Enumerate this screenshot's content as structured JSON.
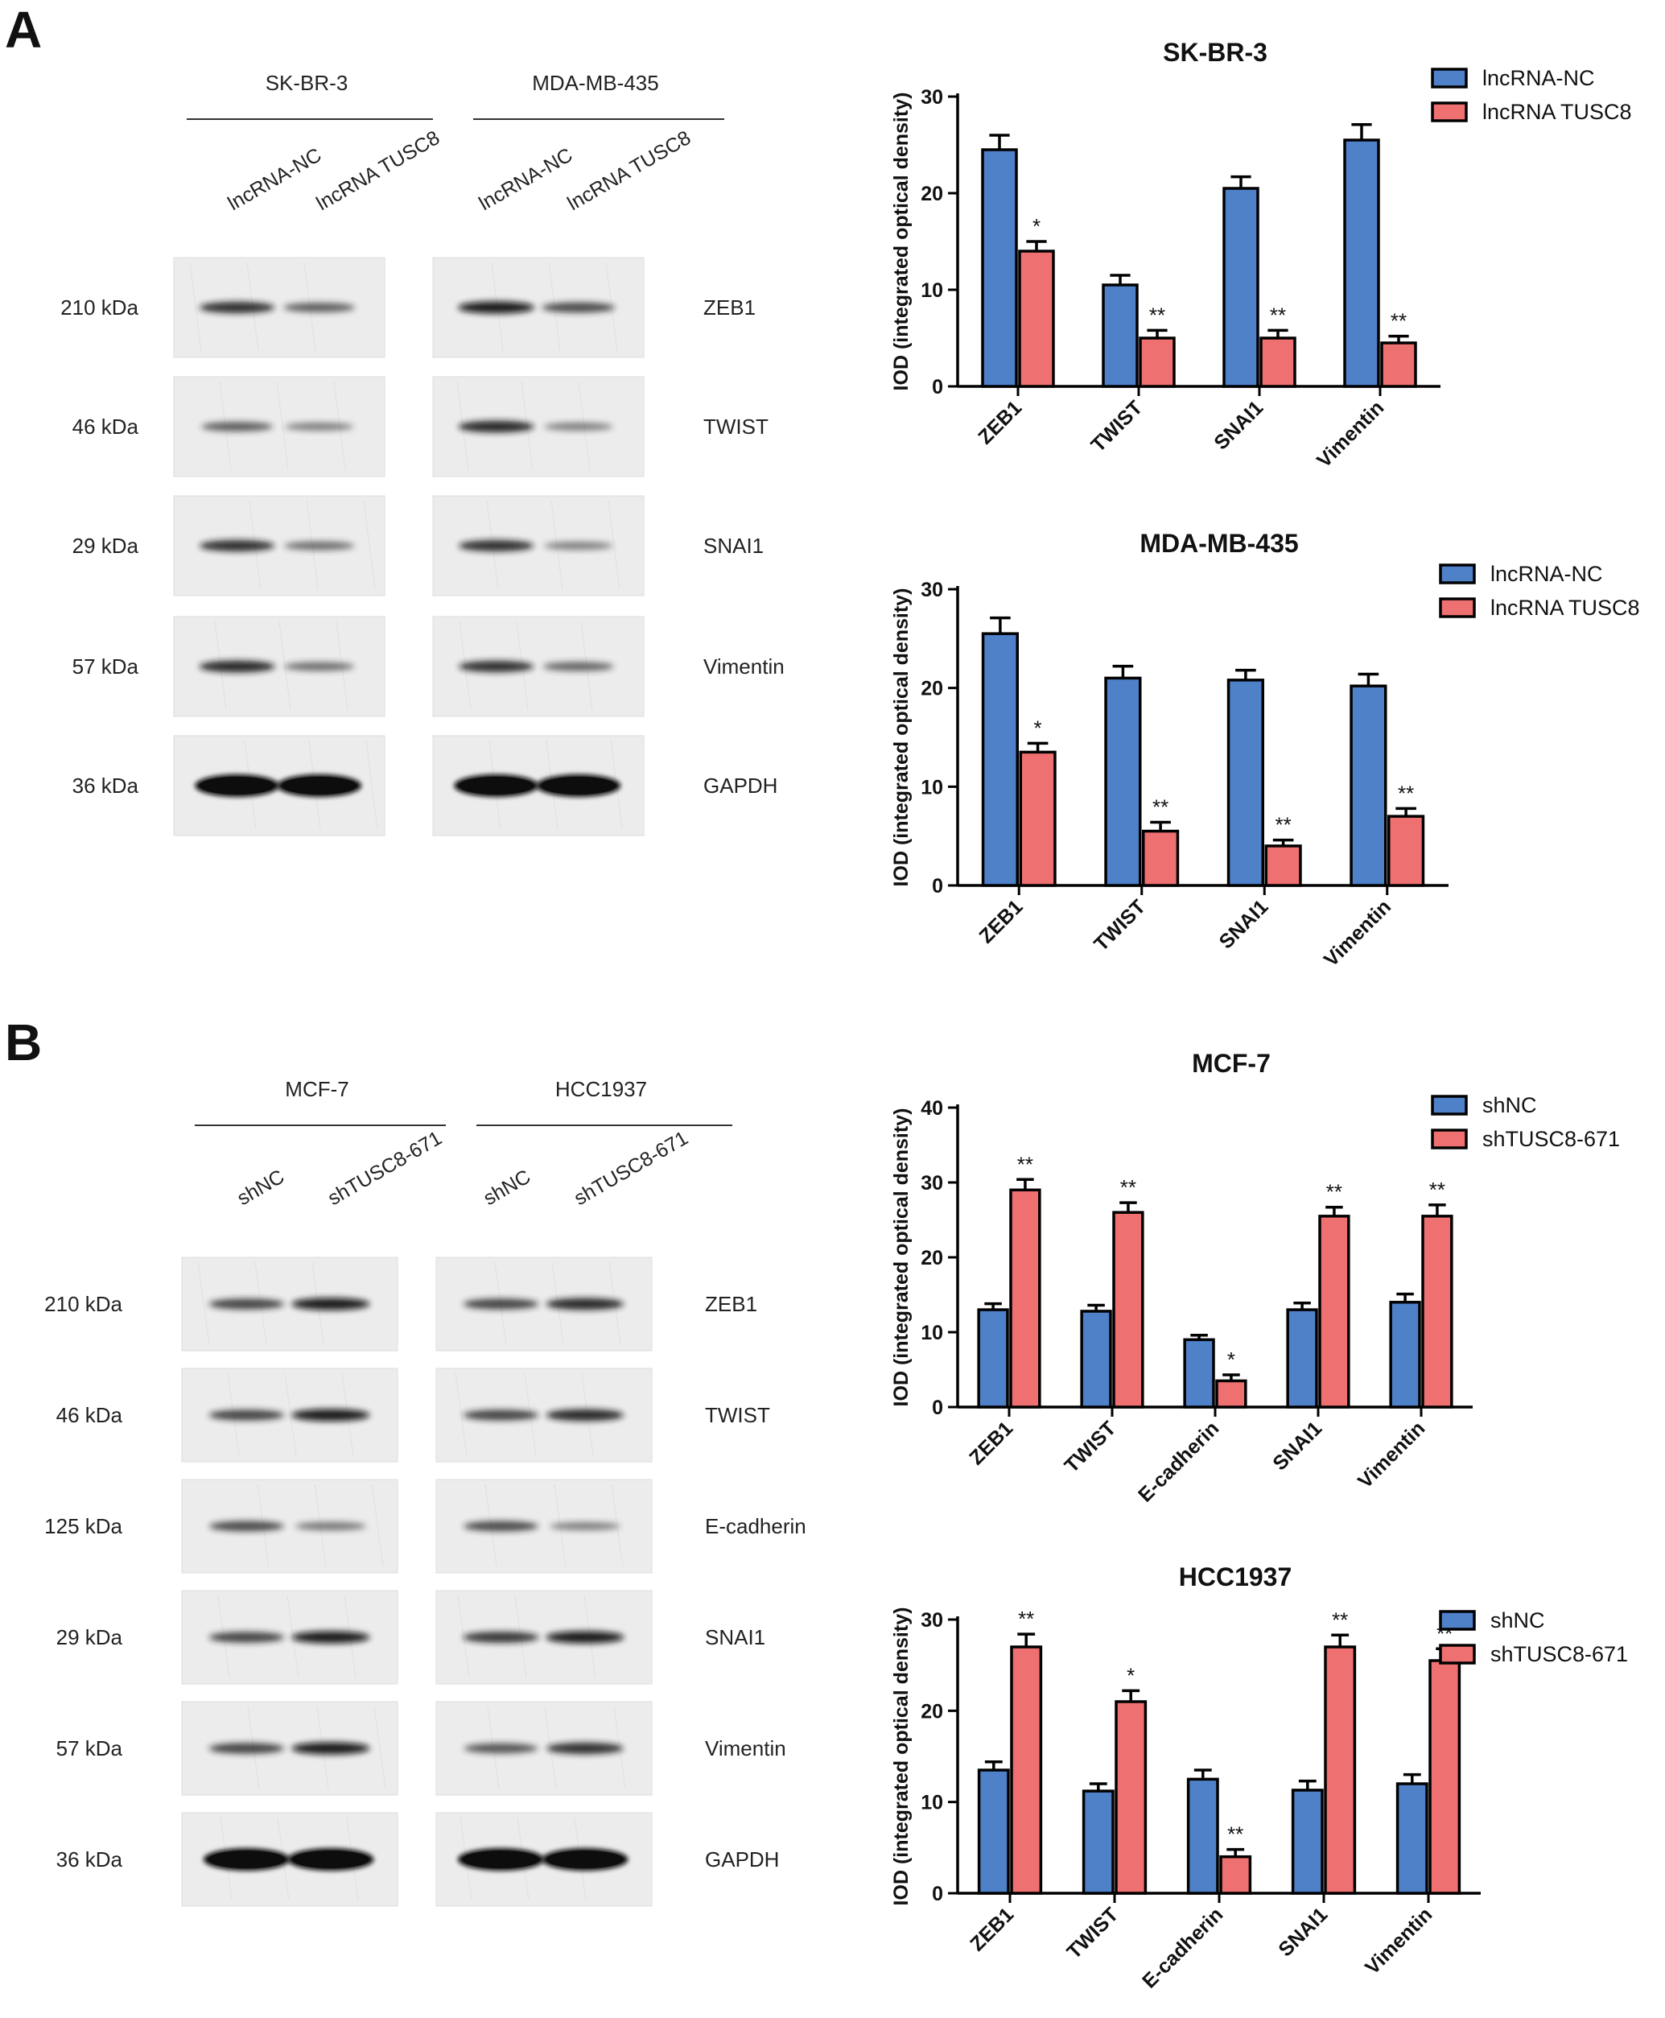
{
  "panels": [
    {
      "letter": "A",
      "blots": {
        "groups": [
          {
            "cell": "SK-BR-3",
            "lanes": [
              "lncRNA-NC",
              "lncRNA TUSC8"
            ]
          },
          {
            "cell": "MDA-MB-435",
            "lanes": [
              "lncRNA-NC",
              "lncRNA TUSC8"
            ]
          }
        ],
        "rows": [
          {
            "kda": "210 kDa",
            "protein": "ZEB1",
            "bands": [
              [
                0.8,
                0.55
              ],
              [
                0.9,
                0.65
              ]
            ]
          },
          {
            "kda": "46 kDa",
            "protein": "TWIST",
            "bands": [
              [
                0.55,
                0.35
              ],
              [
                0.85,
                0.35
              ]
            ]
          },
          {
            "kda": "29 kDa",
            "protein": "SNAI1",
            "bands": [
              [
                0.8,
                0.45
              ],
              [
                0.8,
                0.35
              ]
            ]
          },
          {
            "kda": "57 kDa",
            "protein": "Vimentin",
            "bands": [
              [
                0.85,
                0.45
              ],
              [
                0.8,
                0.5
              ]
            ]
          },
          {
            "kda": "36 kDa",
            "protein": "GAPDH",
            "bands": [
              [
                1.0,
                1.0
              ],
              [
                1.0,
                1.0
              ]
            ]
          }
        ]
      }
    },
    {
      "letter": "B",
      "blots": {
        "groups": [
          {
            "cell": "MCF-7",
            "lanes": [
              "shNC",
              "shTUSC8-671"
            ]
          },
          {
            "cell": "HCC1937",
            "lanes": [
              "shNC",
              "shTUSC8-671"
            ]
          }
        ],
        "rows": [
          {
            "kda": "210 kDa",
            "protein": "ZEB1",
            "bands": [
              [
                0.7,
                0.9
              ],
              [
                0.7,
                0.85
              ]
            ]
          },
          {
            "kda": "46 kDa",
            "protein": "TWIST",
            "bands": [
              [
                0.7,
                0.9
              ],
              [
                0.7,
                0.85
              ]
            ]
          },
          {
            "kda": "125 kDa",
            "protein": "E-cadherin",
            "bands": [
              [
                0.65,
                0.4
              ],
              [
                0.65,
                0.35
              ]
            ]
          },
          {
            "kda": "29 kDa",
            "protein": "SNAI1",
            "bands": [
              [
                0.7,
                0.9
              ],
              [
                0.75,
                0.9
              ]
            ]
          },
          {
            "kda": "57 kDa",
            "protein": "Vimentin",
            "bands": [
              [
                0.7,
                0.9
              ],
              [
                0.6,
                0.8
              ]
            ]
          },
          {
            "kda": "36 kDa",
            "protein": "GAPDH",
            "bands": [
              [
                1.0,
                1.0
              ],
              [
                1.0,
                1.0
              ]
            ]
          }
        ]
      }
    }
  ],
  "chart_data": [
    {
      "type": "bar",
      "title": "SK-BR-3",
      "ylabel": "IOD (integrated optical density)",
      "ylim": [
        0,
        30
      ],
      "yticks": [
        0,
        10,
        20,
        30
      ],
      "categories": [
        "ZEB1",
        "TWIST",
        "SNAI1",
        "Vimentin"
      ],
      "series": [
        {
          "name": "lncRNA-NC",
          "values": [
            24.5,
            10.5,
            20.5,
            25.5
          ],
          "errors": [
            1.5,
            1.0,
            1.2,
            1.6
          ],
          "color": "#4f81c9",
          "sig": [
            "",
            "",
            "",
            ""
          ]
        },
        {
          "name": "lncRNA TUSC8",
          "values": [
            14,
            5,
            5,
            4.5
          ],
          "errors": [
            1.0,
            0.8,
            0.8,
            0.7
          ],
          "color": "#ef7070",
          "sig": [
            "*",
            "**",
            "**",
            "**"
          ]
        }
      ],
      "legend": "top-right"
    },
    {
      "type": "bar",
      "title": "MDA-MB-435",
      "ylabel": "IOD (integrated optical density)",
      "ylim": [
        0,
        30
      ],
      "yticks": [
        0,
        10,
        20,
        30
      ],
      "categories": [
        "ZEB1",
        "TWIST",
        "SNAI1",
        "Vimentin"
      ],
      "series": [
        {
          "name": "lncRNA-NC",
          "values": [
            25.5,
            21,
            20.8,
            20.2
          ],
          "errors": [
            1.6,
            1.2,
            1.0,
            1.2
          ],
          "color": "#4f81c9",
          "sig": [
            "",
            "",
            "",
            ""
          ]
        },
        {
          "name": "lncRNA TUSC8",
          "values": [
            13.5,
            5.5,
            4,
            7
          ],
          "errors": [
            0.9,
            0.9,
            0.6,
            0.8
          ],
          "color": "#ef7070",
          "sig": [
            "*",
            "**",
            "**",
            "**"
          ]
        }
      ],
      "legend": "top-right"
    },
    {
      "type": "bar",
      "title": "MCF-7",
      "ylabel": "IOD (integrated optical density)",
      "ylim": [
        0,
        40
      ],
      "yticks": [
        0,
        10,
        20,
        30,
        40
      ],
      "categories": [
        "ZEB1",
        "TWIST",
        "E-cadherin",
        "SNAI1",
        "Vimentin"
      ],
      "series": [
        {
          "name": "shNC",
          "values": [
            13,
            12.8,
            9,
            13,
            14
          ],
          "errors": [
            0.8,
            0.8,
            0.6,
            0.9,
            1.1
          ],
          "color": "#4f81c9",
          "sig": [
            "",
            "",
            "",
            "",
            ""
          ]
        },
        {
          "name": "shTUSC8-671",
          "values": [
            29,
            26,
            3.5,
            25.5,
            25.5
          ],
          "errors": [
            1.4,
            1.3,
            0.8,
            1.2,
            1.5
          ],
          "color": "#ef7070",
          "sig": [
            "**",
            "**",
            "*",
            "**",
            "**"
          ]
        }
      ],
      "legend": "top-right"
    },
    {
      "type": "bar",
      "title": "HCC1937",
      "ylabel": "IOD (integrated optical density)",
      "ylim": [
        0,
        30
      ],
      "yticks": [
        0,
        10,
        20,
        30
      ],
      "categories": [
        "ZEB1",
        "TWIST",
        "E-cadherin",
        "SNAI1",
        "Vimentin"
      ],
      "series": [
        {
          "name": "shNC",
          "values": [
            13.5,
            11.2,
            12.5,
            11.3,
            12
          ],
          "errors": [
            0.9,
            0.8,
            1.0,
            1.0,
            1.0
          ],
          "color": "#4f81c9",
          "sig": [
            "",
            "",
            "",
            "",
            ""
          ]
        },
        {
          "name": "shTUSC8-671",
          "values": [
            27,
            21,
            4,
            27,
            25.5
          ],
          "errors": [
            1.4,
            1.2,
            0.8,
            1.3,
            1.3
          ],
          "color": "#ef7070",
          "sig": [
            "**",
            "*",
            "**",
            "**",
            "**"
          ]
        }
      ],
      "legend": "top-right"
    }
  ]
}
